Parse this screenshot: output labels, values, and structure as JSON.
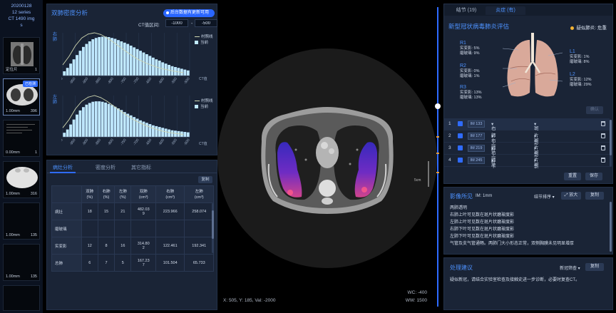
{
  "study": {
    "date": "20200128",
    "series": "12 series",
    "info": "CT 1490 img",
    "extra": "s"
  },
  "thumbnails": [
    {
      "left": "定位片",
      "right": "1"
    },
    {
      "left": "1.00mm",
      "right": "396",
      "badge": "已检测"
    },
    {
      "left": "0.00mm",
      "right": "1"
    },
    {
      "left": "1.00mm",
      "right": "316"
    },
    {
      "left": "1.00mm",
      "right": "135"
    },
    {
      "left": "1.00mm",
      "right": "135"
    },
    {
      "left": "",
      "right": ""
    }
  ],
  "density": {
    "title": "双肺密度分析",
    "update_button": "后台数据有更新可用",
    "range_label": "CT值区间:",
    "range_min": "-1000",
    "range_max": "-500",
    "dash": "-",
    "right_label": "右肺",
    "left_label": "左肺",
    "legend_line": "村照线",
    "legend_bar": "当前",
    "ct_axis_label": "CT值"
  },
  "chart_data": [
    {
      "type": "bar",
      "title": "",
      "series_name": "右肺",
      "x_tick_labels": [
        "-1000",
        "-950",
        "-900",
        "-850",
        "-800",
        "-750",
        "-700",
        "-650",
        "-600",
        "-550",
        "-500"
      ],
      "xlim": [
        -1000,
        -500
      ],
      "legend": [
        "村照线",
        "当前"
      ],
      "legend_position": "top-right",
      "bars": [
        0.1,
        0.18,
        0.28,
        0.38,
        0.48,
        0.58,
        0.67,
        0.74,
        0.8,
        0.85,
        0.88,
        0.9,
        0.91,
        0.91,
        0.9,
        0.88,
        0.86,
        0.83,
        0.8,
        0.77,
        0.74,
        0.7,
        0.66,
        0.62,
        0.58,
        0.54,
        0.5,
        0.46,
        0.42,
        0.38,
        0.35,
        0.31,
        0.28,
        0.25,
        0.22,
        0.2,
        0.18,
        0.16,
        0.14,
        0.12
      ],
      "reference_line": [
        0.25,
        0.45,
        0.7,
        0.88,
        0.97,
        1.0,
        0.96,
        0.88,
        0.78,
        0.67,
        0.56,
        0.46,
        0.37,
        0.3,
        0.24,
        0.19,
        0.15,
        0.12,
        0.09,
        0.07
      ]
    },
    {
      "type": "bar",
      "title": "",
      "series_name": "左肺",
      "x_tick_labels": [
        "-1000",
        "-950",
        "-900",
        "-850",
        "-800",
        "-750",
        "-700",
        "-650",
        "-600",
        "-550",
        "-500"
      ],
      "xlim": [
        -1000,
        -500
      ],
      "legend": [
        "村照线",
        "当前"
      ],
      "legend_position": "top-right",
      "bars": [
        0.1,
        0.18,
        0.3,
        0.42,
        0.54,
        0.64,
        0.72,
        0.78,
        0.82,
        0.85,
        0.86,
        0.86,
        0.85,
        0.83,
        0.8,
        0.77,
        0.73,
        0.69,
        0.65,
        0.6,
        0.56,
        0.52,
        0.48,
        0.44,
        0.4,
        0.37,
        0.34,
        0.31,
        0.28,
        0.26,
        0.24,
        0.22,
        0.2,
        0.18,
        0.16,
        0.15,
        0.14,
        0.13,
        0.12,
        0.11
      ],
      "reference_line": [
        0.22,
        0.42,
        0.68,
        0.86,
        0.96,
        1.0,
        0.95,
        0.86,
        0.75,
        0.64,
        0.53,
        0.43,
        0.35,
        0.28,
        0.22,
        0.17,
        0.13,
        0.1,
        0.08,
        0.06
      ]
    }
  ],
  "stats": {
    "tabs": [
      "病灶分析",
      "密度分析",
      "其它指标"
    ],
    "copy": "复制",
    "headers": [
      "",
      "双肺\n(%)",
      "右肺\n(%)",
      "左肺\n(%)",
      "双肺\n(cm³)",
      "右肺\n(cm³)",
      "左肺\n(cm³)"
    ],
    "rows": [
      [
        "病灶",
        "18",
        "15",
        "21",
        "482.03\n9",
        "223.966",
        "258.074"
      ],
      [
        "磨玻璃",
        "",
        "",
        "",
        "",
        "",
        ""
      ],
      [
        "实变影",
        "12",
        "8",
        "16",
        "314.80\n2",
        "122.461",
        "192.341"
      ],
      [
        "总肺",
        "6",
        "7",
        "5",
        "167.23\n7",
        "101.504",
        "65.733"
      ]
    ]
  },
  "viewport": {
    "coords": "X: 505, Y: 185, Val: -2000",
    "wc": "WC: -400",
    "ww": "WW: 1500",
    "scale": "5cm"
  },
  "eval": {
    "tabs": [
      "结节 (19)",
      "炎症 (有)"
    ],
    "title": "新型冠状病毒肺炎评估",
    "risk": "疑似肺炎: 危重",
    "lobes": [
      {
        "name": "R1",
        "l1": "实变影: 5%",
        "l2": "磨玻璃: 9%"
      },
      {
        "name": "R2",
        "l1": "实变影: 0%",
        "l2": "磨玻璃: 1%"
      },
      {
        "name": "R3",
        "l1": "实变影: 13%",
        "l2": "磨玻璃: 13%"
      },
      {
        "name": "L1",
        "l1": "实变影: 1%",
        "l2": "磨玻璃: 8%"
      },
      {
        "name": "L2",
        "l1": "实变影: 12%",
        "l2": "磨玻璃: 29%"
      }
    ],
    "confirm": "确认",
    "lesions": [
      {
        "idx": "1",
        "im": "IM 133",
        "loc": "右肺上叶",
        "type": "斑片影"
      },
      {
        "idx": "2",
        "im": "IM 177",
        "loc": "右肺上叶",
        "type": "斑片影"
      },
      {
        "idx": "3",
        "im": "IM 219",
        "loc": "右肺下叶",
        "type": "斑片影"
      },
      {
        "idx": "4",
        "im": "IM 245",
        "loc": "左肺下叶",
        "type": "斑片影"
      }
    ],
    "reset": "重置",
    "save": "保存"
  },
  "findings": {
    "title": "影像所见",
    "im_info": "IM:   1mm",
    "sort": "结节排序",
    "zoom": "放大",
    "copy": "复制",
    "lines": [
      "两肺透明",
      "右肺上叶可见数在斑片状磨玻度影",
      "左肺上叶可见数在斑片状磨玻度影",
      "右肺下叶可见数在斑片状磨玻度影",
      "左肺下叶可见数在斑片状磨玻度影",
      "气管及支气管通畅。两肺门大小形态正常，双侧胸膜未见明显增厚"
    ]
  },
  "advice": {
    "title": "处理建议",
    "mode": "新冠筛查",
    "copy": "复制",
    "text": "疑似新冠，请结合实验室检查及接触史进一步诊断，必要时复查CT。"
  }
}
